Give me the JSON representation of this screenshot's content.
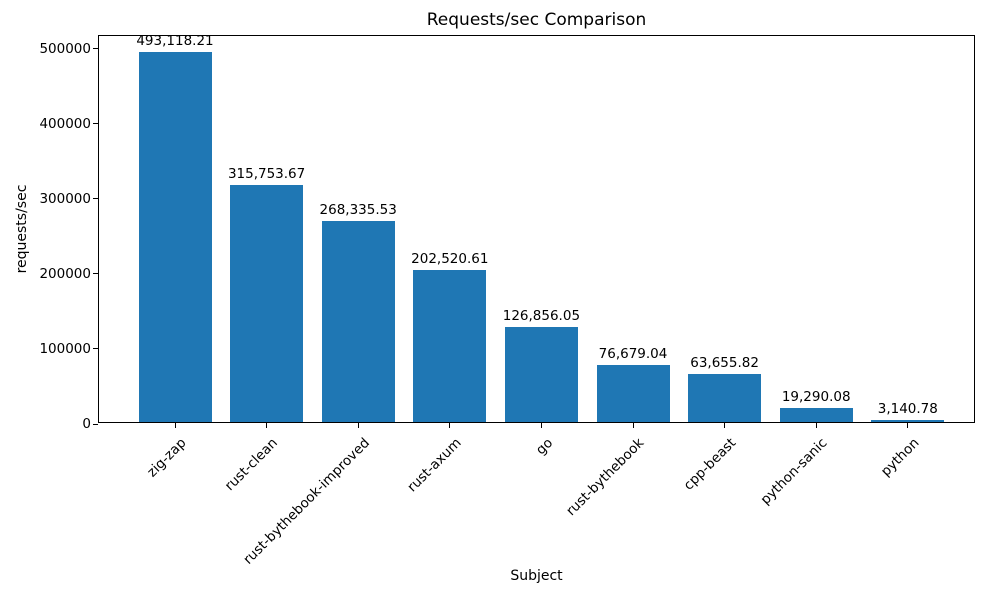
{
  "chart_data": {
    "type": "bar",
    "title": "Requests/sec Comparison",
    "xlabel": "Subject",
    "ylabel": "requests/sec",
    "categories": [
      "zig-zap",
      "rust-clean",
      "rust-bythebook-improved",
      "rust-axum",
      "go",
      "rust-bythebook",
      "cpp-beast",
      "python-sanic",
      "python"
    ],
    "values": [
      493118.21,
      315753.67,
      268335.53,
      202520.61,
      126856.05,
      76679.04,
      63655.82,
      19290.08,
      3140.78
    ],
    "value_labels": [
      "493,118.21",
      "315,753.67",
      "268,335.53",
      "202,520.61",
      "126,856.05",
      "76,679.04",
      "63,655.82",
      "19,290.08",
      "3,140.78"
    ],
    "yticks": [
      0,
      100000,
      200000,
      300000,
      400000,
      500000
    ],
    "ytick_labels": [
      "0",
      "100000",
      "200000",
      "300000",
      "400000",
      "500000"
    ],
    "ylim": [
      0,
      517333
    ],
    "bar_color": "#1f77b4",
    "grid": false,
    "legend": null
  }
}
